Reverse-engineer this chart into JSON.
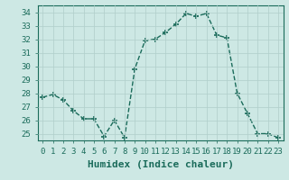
{
  "x": [
    0,
    1,
    2,
    3,
    4,
    5,
    6,
    7,
    8,
    9,
    10,
    11,
    12,
    13,
    14,
    15,
    16,
    17,
    18,
    19,
    20,
    21,
    22,
    23
  ],
  "y": [
    27.7,
    27.9,
    27.5,
    26.7,
    26.1,
    26.1,
    24.8,
    26.0,
    24.7,
    29.8,
    31.9,
    32.0,
    32.5,
    33.1,
    33.9,
    33.7,
    33.9,
    32.3,
    32.1,
    28.0,
    26.5,
    25.0,
    25.0,
    24.7
  ],
  "line_color": "#1a6b5a",
  "marker": "+",
  "marker_size": 4,
  "marker_lw": 1.2,
  "bg_color": "#cde8e4",
  "grid_color": "#b0ceca",
  "xlabel": "Humidex (Indice chaleur)",
  "ylim": [
    24.5,
    34.5
  ],
  "xlim": [
    -0.5,
    23.5
  ],
  "yticks": [
    25,
    26,
    27,
    28,
    29,
    30,
    31,
    32,
    33,
    34
  ],
  "xticks": [
    0,
    1,
    2,
    3,
    4,
    5,
    6,
    7,
    8,
    9,
    10,
    11,
    12,
    13,
    14,
    15,
    16,
    17,
    18,
    19,
    20,
    21,
    22,
    23
  ],
  "xtick_labels": [
    "0",
    "1",
    "2",
    "3",
    "4",
    "5",
    "6",
    "7",
    "8",
    "9",
    "10",
    "11",
    "12",
    "13",
    "14",
    "15",
    "16",
    "17",
    "18",
    "19",
    "20",
    "21",
    "22",
    "23"
  ],
  "tick_fontsize": 6.5,
  "xlabel_fontsize": 8,
  "axis_color": "#1a6b5a",
  "line_width": 1.0,
  "linestyle": "--"
}
